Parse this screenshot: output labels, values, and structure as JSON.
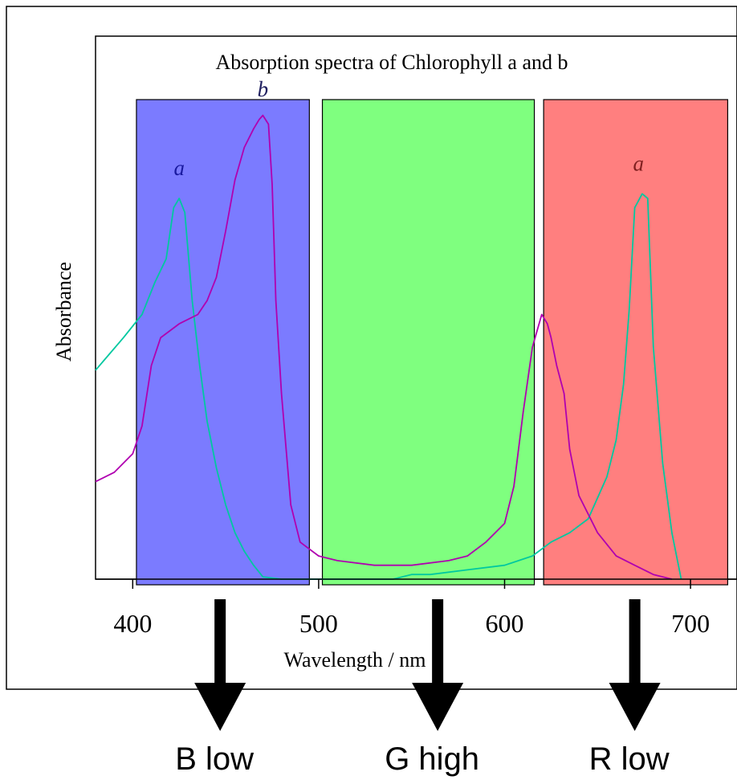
{
  "chart_data": {
    "type": "line",
    "title": "Absorption spectra of Chlorophyll a and b",
    "xlabel": "Wavelength / nm",
    "ylabel": "Absorbance",
    "xlim": [
      380,
      725
    ],
    "ylim": [
      0,
      1
    ],
    "xticks": [
      400,
      500,
      600,
      700
    ],
    "grid": false,
    "series": [
      {
        "name": "a",
        "color": "#00c8a0",
        "x": [
          380,
          395,
          405,
          412,
          418,
          422,
          425,
          428,
          432,
          436,
          440,
          445,
          450,
          455,
          460,
          465,
          470,
          480,
          500,
          520,
          540,
          550,
          560,
          580,
          600,
          615,
          625,
          635,
          645,
          655,
          660,
          664,
          667,
          670,
          674,
          677,
          680,
          685,
          690,
          695
        ],
        "y": [
          0.45,
          0.52,
          0.57,
          0.64,
          0.69,
          0.8,
          0.82,
          0.79,
          0.6,
          0.46,
          0.34,
          0.24,
          0.16,
          0.1,
          0.06,
          0.03,
          0.005,
          0.0,
          0.0,
          0.0,
          0.0,
          0.01,
          0.01,
          0.02,
          0.03,
          0.05,
          0.08,
          0.1,
          0.13,
          0.22,
          0.3,
          0.42,
          0.58,
          0.8,
          0.83,
          0.82,
          0.5,
          0.25,
          0.1,
          0.0
        ]
      },
      {
        "name": "b",
        "color": "#b000b0",
        "x": [
          380,
          390,
          400,
          405,
          410,
          415,
          425,
          435,
          440,
          445,
          450,
          455,
          460,
          465,
          468,
          470,
          473,
          475,
          477,
          480,
          485,
          490,
          500,
          510,
          530,
          550,
          570,
          580,
          590,
          600,
          605,
          610,
          615,
          620,
          623,
          625,
          628,
          632,
          635,
          640,
          650,
          660,
          670,
          680,
          690
        ],
        "y": [
          0.21,
          0.23,
          0.27,
          0.33,
          0.46,
          0.52,
          0.55,
          0.57,
          0.6,
          0.65,
          0.75,
          0.86,
          0.93,
          0.97,
          0.99,
          0.999,
          0.98,
          0.85,
          0.6,
          0.4,
          0.16,
          0.08,
          0.05,
          0.04,
          0.03,
          0.03,
          0.04,
          0.05,
          0.08,
          0.12,
          0.2,
          0.36,
          0.5,
          0.57,
          0.55,
          0.52,
          0.46,
          0.4,
          0.28,
          0.18,
          0.1,
          0.05,
          0.03,
          0.01,
          0.0
        ]
      }
    ],
    "bands": [
      {
        "name": "blue",
        "x": [
          402,
          495
        ],
        "color": "#7b7bff"
      },
      {
        "name": "green",
        "x": [
          502,
          616
        ],
        "color": "#7fff7f"
      },
      {
        "name": "red",
        "x": [
          621,
          720
        ],
        "color": "#ff7f7f"
      }
    ],
    "peak_labels": [
      {
        "text": "a",
        "x": 425,
        "y": 0.87,
        "color": "#1a1aa0"
      },
      {
        "text": "b",
        "x": 470,
        "y": 1.04,
        "color": "#202060"
      },
      {
        "text": "a",
        "x": 672,
        "y": 0.88,
        "color": "#802020"
      }
    ]
  },
  "annotations": [
    {
      "text": "B low",
      "x": 447
    },
    {
      "text": "G high",
      "x": 564
    },
    {
      "text": "R low",
      "x": 670
    }
  ],
  "arrow_color": "#000000"
}
